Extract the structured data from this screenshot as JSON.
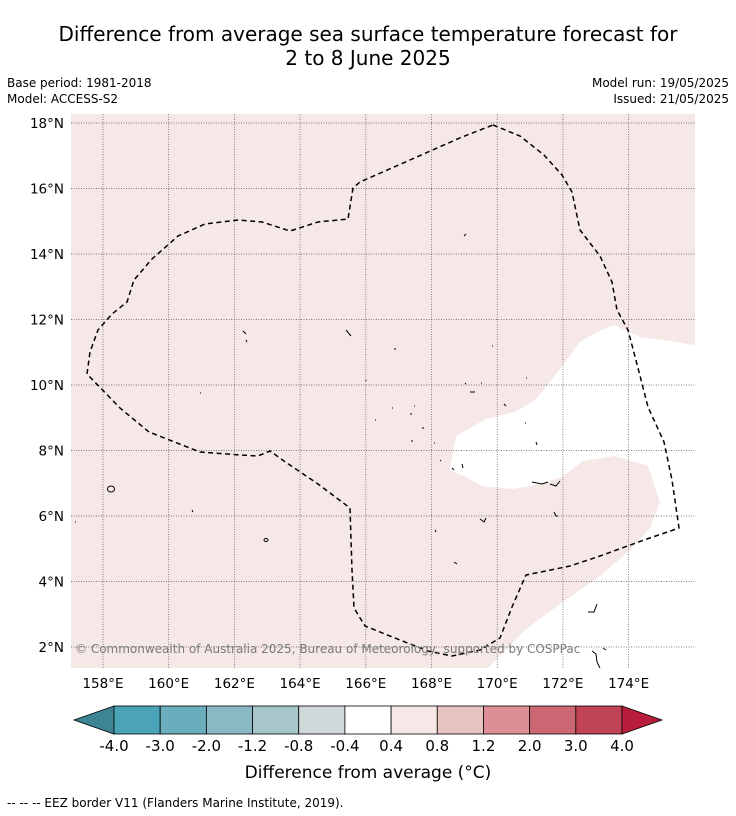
{
  "header": {
    "title_line1": "Difference from average sea surface temperature forecast for",
    "title_line2": "2 to 8 June 2025",
    "base_period": "Base period: 1981-2018",
    "model": "Model: ACCESS-S2",
    "model_run": "Model run: 19/05/2025",
    "issued": "Issued: 21/05/2025"
  },
  "map": {
    "lat_labels": [
      "18°N",
      "16°N",
      "14°N",
      "12°N",
      "10°N",
      "8°N",
      "6°N",
      "4°N",
      "2°N"
    ],
    "lon_labels": [
      "158°E",
      "160°E",
      "162°E",
      "164°E",
      "166°E",
      "168°E",
      "170°E",
      "172°E",
      "174°E"
    ],
    "copyright": "© Commonwealth of Australia 2025, Bureau of Meteorology, supported by COSPPac",
    "fill_color": "#f5e8e7",
    "neutral_color": "#ffffff"
  },
  "colorbar": {
    "tick_labels": [
      "-4.0",
      "-3.0",
      "-2.0",
      "-1.2",
      "-0.8",
      "-0.4",
      "0.4",
      "0.8",
      "1.2",
      "2.0",
      "3.0",
      "4.0"
    ],
    "colors": [
      "#4aa3b6",
      "#6aaebd",
      "#8ab8c3",
      "#a6c6ca",
      "#d0d9da",
      "#ffffff",
      "#f5e8e7",
      "#e8c4c1",
      "#dc8f96",
      "#cd6673",
      "#c04455"
    ],
    "low_extend_color": "#3d8593",
    "high_extend_color": "#b81e3c",
    "title": "Difference from average (°C)"
  },
  "footer": {
    "eez_legend": "--  --  -- EEZ border V11 (Flanders Marine Institute, 2019)."
  }
}
